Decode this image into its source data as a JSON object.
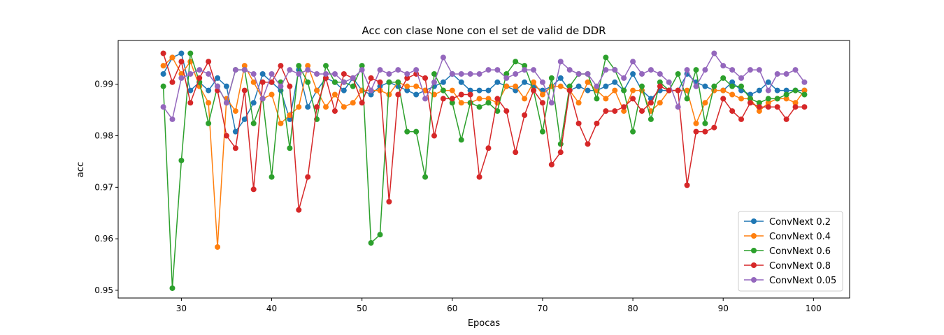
{
  "chart_data": {
    "type": "line",
    "title": "Acc con clase None con el set de valid de DDR",
    "xlabel": "Epocas",
    "ylabel": "acc",
    "xlim": [
      23,
      104
    ],
    "ylim": [
      0.9485,
      0.9985
    ],
    "xticks": [
      30,
      40,
      50,
      60,
      70,
      80,
      90,
      100
    ],
    "yticks": [
      0.95,
      0.96,
      0.97,
      0.98,
      0.99
    ],
    "ytick_labels": [
      "0.95",
      "0.96",
      "0.97",
      "0.98",
      "0.99"
    ],
    "legend_position": "lower right",
    "grid": false,
    "x": [
      28,
      29,
      30,
      31,
      32,
      33,
      34,
      35,
      36,
      37,
      38,
      39,
      40,
      41,
      42,
      43,
      44,
      45,
      46,
      47,
      48,
      49,
      50,
      51,
      52,
      53,
      54,
      55,
      56,
      57,
      58,
      59,
      60,
      61,
      62,
      63,
      64,
      65,
      66,
      67,
      68,
      69,
      70,
      71,
      72,
      73,
      74,
      75,
      76,
      77,
      78,
      79,
      80,
      81,
      82,
      83,
      84,
      85,
      86,
      87,
      88,
      89,
      90,
      91,
      92,
      93,
      94,
      95,
      96,
      97,
      98,
      99
    ],
    "series": [
      {
        "name": "ConvNext 0.2",
        "color": "#1f77b4",
        "values": [
          0.992,
          0.9952,
          0.996,
          0.9888,
          0.9904,
          0.9888,
          0.9912,
          0.9896,
          0.9808,
          0.9832,
          0.9864,
          0.992,
          0.9904,
          0.9888,
          0.9832,
          0.9928,
          0.9856,
          0.9888,
          0.9912,
          0.9904,
          0.9888,
          0.9912,
          0.9888,
          0.988,
          0.9896,
          0.9904,
          0.9896,
          0.9888,
          0.988,
          0.9888,
          0.9896,
          0.9904,
          0.992,
          0.9904,
          0.9888,
          0.9888,
          0.9888,
          0.9904,
          0.9896,
          0.9888,
          0.9904,
          0.9896,
          0.9888,
          0.9896,
          0.9912,
          0.9888,
          0.9896,
          0.9888,
          0.9888,
          0.9896,
          0.9904,
          0.9888,
          0.992,
          0.9888,
          0.9872,
          0.9888,
          0.9888,
          0.9888,
          0.992,
          0.9904,
          0.9896,
          0.9888,
          0.9888,
          0.9904,
          0.9888,
          0.988,
          0.9888,
          0.9904,
          0.9888,
          0.9888,
          0.9888,
          0.9888
        ]
      },
      {
        "name": "ConvNext 0.4",
        "color": "#ff7f0e",
        "values": [
          0.9936,
          0.9952,
          0.992,
          0.9944,
          0.9896,
          0.9864,
          0.9584,
          0.9872,
          0.9848,
          0.9936,
          0.9904,
          0.9872,
          0.988,
          0.9824,
          0.984,
          0.9856,
          0.9936,
          0.9888,
          0.9856,
          0.988,
          0.9856,
          0.9864,
          0.9888,
          0.9888,
          0.9888,
          0.988,
          0.9904,
          0.9896,
          0.9896,
          0.9888,
          0.988,
          0.9888,
          0.9888,
          0.9864,
          0.9864,
          0.9872,
          0.9872,
          0.9864,
          0.9896,
          0.9896,
          0.9872,
          0.9904,
          0.988,
          0.9896,
          0.9896,
          0.9888,
          0.9864,
          0.9904,
          0.9888,
          0.9872,
          0.9888,
          0.9848,
          0.9888,
          0.9888,
          0.9848,
          0.9864,
          0.9888,
          0.9888,
          0.9888,
          0.9824,
          0.9864,
          0.9888,
          0.9888,
          0.988,
          0.9872,
          0.9872,
          0.9848,
          0.9864,
          0.9872,
          0.9872,
          0.9864,
          0.9888
        ]
      },
      {
        "name": "ConvNext 0.6",
        "color": "#2ca02c",
        "values": [
          0.9896,
          0.9504,
          0.9752,
          0.996,
          0.9904,
          0.9824,
          0.9896,
          0.9864,
          0.9928,
          0.9928,
          0.9824,
          0.9872,
          0.972,
          0.9904,
          0.9776,
          0.9936,
          0.9904,
          0.9832,
          0.9936,
          0.9904,
          0.9904,
          0.9896,
          0.9936,
          0.9592,
          0.9608,
          0.9904,
          0.9904,
          0.9808,
          0.9808,
          0.972,
          0.992,
          0.9888,
          0.9864,
          0.9792,
          0.9864,
          0.9856,
          0.9864,
          0.9848,
          0.992,
          0.9944,
          0.9936,
          0.9888,
          0.9808,
          0.9912,
          0.9784,
          0.9896,
          0.992,
          0.992,
          0.9872,
          0.9952,
          0.9928,
          0.9888,
          0.9808,
          0.9896,
          0.9832,
          0.9904,
          0.9888,
          0.992,
          0.9872,
          0.9928,
          0.9824,
          0.9896,
          0.9912,
          0.9896,
          0.9896,
          0.9872,
          0.9864,
          0.9872,
          0.9872,
          0.988,
          0.9888,
          0.988
        ]
      },
      {
        "name": "ConvNext 0.8",
        "color": "#d62728",
        "values": [
          0.996,
          0.9904,
          0.9944,
          0.9864,
          0.9912,
          0.9944,
          0.9888,
          0.98,
          0.9776,
          0.9888,
          0.9696,
          0.9904,
          0.9904,
          0.9936,
          0.9896,
          0.9656,
          0.972,
          0.9856,
          0.9912,
          0.9848,
          0.992,
          0.9912,
          0.9864,
          0.9912,
          0.9904,
          0.9672,
          0.988,
          0.9912,
          0.992,
          0.9912,
          0.98,
          0.9872,
          0.9872,
          0.988,
          0.988,
          0.972,
          0.9776,
          0.9872,
          0.9848,
          0.9768,
          0.984,
          0.9888,
          0.9864,
          0.9744,
          0.9768,
          0.9888,
          0.9824,
          0.9784,
          0.9824,
          0.9848,
          0.9848,
          0.9856,
          0.9872,
          0.9848,
          0.9864,
          0.9896,
          0.9888,
          0.9888,
          0.9704,
          0.9808,
          0.9808,
          0.9816,
          0.9872,
          0.9848,
          0.9832,
          0.9864,
          0.9856,
          0.9856,
          0.9856,
          0.9832,
          0.9856,
          0.9856
        ]
      },
      {
        "name": "ConvNext 0.05",
        "color": "#9467bd",
        "values": [
          0.9856,
          0.9832,
          0.9912,
          0.992,
          0.9928,
          0.992,
          0.9896,
          0.9864,
          0.9928,
          0.9928,
          0.992,
          0.9872,
          0.992,
          0.9896,
          0.9928,
          0.992,
          0.9928,
          0.992,
          0.992,
          0.992,
          0.9904,
          0.9912,
          0.9928,
          0.9888,
          0.9928,
          0.992,
          0.9928,
          0.992,
          0.9928,
          0.9872,
          0.9904,
          0.9952,
          0.992,
          0.992,
          0.992,
          0.992,
          0.9928,
          0.9928,
          0.9912,
          0.992,
          0.9928,
          0.9928,
          0.9904,
          0.9864,
          0.9944,
          0.9928,
          0.992,
          0.992,
          0.9896,
          0.9928,
          0.9928,
          0.9912,
          0.9944,
          0.992,
          0.9928,
          0.992,
          0.9904,
          0.9856,
          0.9928,
          0.9896,
          0.9928,
          0.996,
          0.9936,
          0.9928,
          0.9912,
          0.9928,
          0.9928,
          0.9888,
          0.992,
          0.992,
          0.9928,
          0.9904
        ]
      }
    ]
  }
}
